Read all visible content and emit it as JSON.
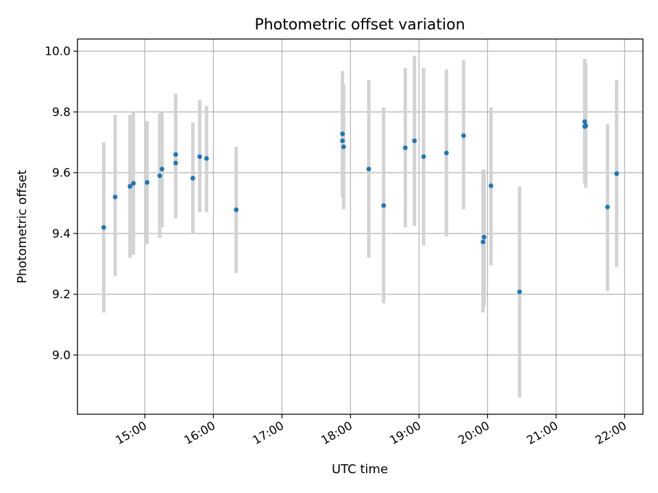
{
  "chart_data": {
    "type": "scatter",
    "title": "Photometric offset variation",
    "xlabel": "UTC time",
    "ylabel": "Photometric offset",
    "grid": true,
    "xlim": [
      "14:01",
      "22:16"
    ],
    "ylim": [
      8.805,
      10.04
    ],
    "x_ticks": [
      "15:00",
      "16:00",
      "17:00",
      "18:00",
      "19:00",
      "20:00",
      "21:00",
      "22:00"
    ],
    "y_ticks": [
      9.0,
      9.2,
      9.4,
      9.6,
      9.8,
      10.0
    ],
    "y_tick_labels": [
      "9.0",
      "9.2",
      "9.4",
      "9.6",
      "9.8",
      "10.0"
    ],
    "point_color": "#1f77b4",
    "errorbar_color": "#d3d3d3",
    "series": [
      {
        "points": [
          {
            "t": "14:24",
            "y": 9.42,
            "lo": 9.14,
            "hi": 9.7
          },
          {
            "t": "14:34",
            "y": 9.52,
            "lo": 9.26,
            "hi": 9.79
          },
          {
            "t": "14:47",
            "y": 9.555,
            "lo": 9.32,
            "hi": 9.79
          },
          {
            "t": "14:50",
            "y": 9.565,
            "lo": 9.33,
            "hi": 9.8
          },
          {
            "t": "15:02",
            "y": 9.568,
            "lo": 9.365,
            "hi": 9.77
          },
          {
            "t": "15:13",
            "y": 9.59,
            "lo": 9.385,
            "hi": 9.795
          },
          {
            "t": "15:15",
            "y": 9.612,
            "lo": 9.42,
            "hi": 9.8
          },
          {
            "t": "15:27",
            "y": 9.66,
            "lo": 9.45,
            "hi": 9.86
          },
          {
            "t": "15:27",
            "y": 9.632,
            "lo": 9.45,
            "hi": 9.8
          },
          {
            "t": "15:42",
            "y": 9.582,
            "lo": 9.4,
            "hi": 9.765
          },
          {
            "t": "15:48",
            "y": 9.653,
            "lo": 9.47,
            "hi": 9.84
          },
          {
            "t": "15:54",
            "y": 9.647,
            "lo": 9.47,
            "hi": 9.82
          },
          {
            "t": "16:20",
            "y": 9.478,
            "lo": 9.27,
            "hi": 9.685
          },
          {
            "t": "17:53",
            "y": 9.728,
            "lo": 9.52,
            "hi": 9.935
          },
          {
            "t": "17:53",
            "y": 9.705,
            "lo": 9.52,
            "hi": 9.89
          },
          {
            "t": "17:54",
            "y": 9.685,
            "lo": 9.48,
            "hi": 9.89
          },
          {
            "t": "18:16",
            "y": 9.612,
            "lo": 9.32,
            "hi": 9.905
          },
          {
            "t": "18:29",
            "y": 9.492,
            "lo": 9.17,
            "hi": 9.815
          },
          {
            "t": "18:48",
            "y": 9.682,
            "lo": 9.42,
            "hi": 9.945
          },
          {
            "t": "18:56",
            "y": 9.705,
            "lo": 9.425,
            "hi": 9.985
          },
          {
            "t": "19:04",
            "y": 9.653,
            "lo": 9.36,
            "hi": 9.945
          },
          {
            "t": "19:24",
            "y": 9.665,
            "lo": 9.39,
            "hi": 9.94
          },
          {
            "t": "19:39",
            "y": 9.722,
            "lo": 9.48,
            "hi": 9.97
          },
          {
            "t": "19:56",
            "y": 9.372,
            "lo": 9.14,
            "hi": 9.61
          },
          {
            "t": "19:57",
            "y": 9.388,
            "lo": 9.16,
            "hi": 9.61
          },
          {
            "t": "20:03",
            "y": 9.557,
            "lo": 9.295,
            "hi": 9.815
          },
          {
            "t": "20:28",
            "y": 9.208,
            "lo": 8.86,
            "hi": 9.555
          },
          {
            "t": "21:25",
            "y": 9.768,
            "lo": 9.565,
            "hi": 9.975
          },
          {
            "t": "21:25",
            "y": 9.752,
            "lo": 9.57,
            "hi": 9.94
          },
          {
            "t": "21:26",
            "y": 9.755,
            "lo": 9.55,
            "hi": 9.96
          },
          {
            "t": "21:45",
            "y": 9.487,
            "lo": 9.21,
            "hi": 9.76
          },
          {
            "t": "21:53",
            "y": 9.597,
            "lo": 9.29,
            "hi": 9.905
          }
        ]
      }
    ]
  }
}
